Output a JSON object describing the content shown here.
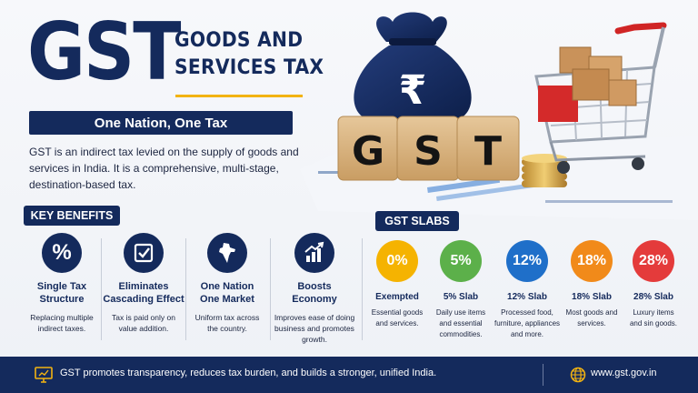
{
  "header": {
    "logo_text": "GST",
    "subtitle_line1": "GOODS AND",
    "subtitle_line2": "SERVICES TAX",
    "motto": "One Nation, One Tax",
    "description": "GST is an indirect tax levied on the supply of goods and services in India. It is a comprehensive, multi-stage, destination-based tax."
  },
  "illustration": {
    "blocks": [
      "G",
      "S",
      "T"
    ],
    "bag_symbol": "₹"
  },
  "benefits": {
    "heading": "KEY BENEFITS",
    "items": [
      {
        "icon": "percent-icon",
        "title_l1": "Single Tax",
        "title_l2": "Structure",
        "text_l1": "Replacing multiple",
        "text_l2": "indirect taxes.",
        "text_l3": ""
      },
      {
        "icon": "checkbox-icon",
        "title_l1": "Eliminates",
        "title_l2": "Cascading Effect",
        "text_l1": "Tax is paid only on",
        "text_l2": "value addition.",
        "text_l3": ""
      },
      {
        "icon": "india-map-icon",
        "title_l1": "One Nation",
        "title_l2": "One Market",
        "text_l1": "Uniform tax across",
        "text_l2": "the country.",
        "text_l3": ""
      },
      {
        "icon": "growth-chart-icon",
        "title_l1": "Boosts",
        "title_l2": "Economy",
        "text_l1": "Improves ease of doing",
        "text_l2": "business and promotes",
        "text_l3": "growth."
      }
    ]
  },
  "slabs": {
    "heading": "GST SLABS",
    "items": [
      {
        "rate": "0%",
        "name": "Exempted",
        "color": "#f5b301",
        "text_l1": "Essential goods",
        "text_l2": "and services.",
        "text_l3": ""
      },
      {
        "rate": "5%",
        "name": "5% Slab",
        "color": "#5cb04a",
        "text_l1": "Daily use items",
        "text_l2": "and essential",
        "text_l3": "commodities."
      },
      {
        "rate": "12%",
        "name": "12% Slab",
        "color": "#1f6fc9",
        "text_l1": "Processed food,",
        "text_l2": "furniture, appliances",
        "text_l3": "and more."
      },
      {
        "rate": "18%",
        "name": "18% Slab",
        "color": "#f18a1a",
        "text_l1": "Most goods and",
        "text_l2": "services.",
        "text_l3": ""
      },
      {
        "rate": "28%",
        "name": "28% Slab",
        "color": "#e43b3b",
        "text_l1": "Luxury items",
        "text_l2": "and sin goods.",
        "text_l3": ""
      }
    ]
  },
  "footer": {
    "message": "GST promotes transparency, reduces tax burden, and builds a stronger, unified India.",
    "website": "www.gst.gov.in"
  }
}
